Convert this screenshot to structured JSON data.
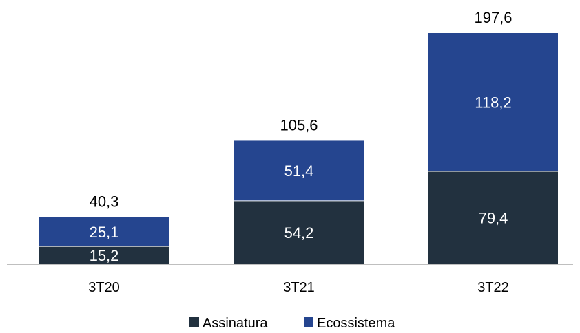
{
  "chart_data": {
    "type": "bar",
    "stacked": true,
    "categories": [
      "3T20",
      "3T21",
      "3T22"
    ],
    "series": [
      {
        "name": "Assinatura",
        "values": [
          15.2,
          54.2,
          79.4
        ],
        "value_labels": [
          "15,2",
          "54,2",
          "79,4"
        ],
        "color": "#22313f"
      },
      {
        "name": "Ecossistema",
        "values": [
          25.1,
          51.4,
          118.2
        ],
        "value_labels": [
          "25,1",
          "51,4",
          "118,2"
        ],
        "color": "#25458f"
      }
    ],
    "totals": [
      40.3,
      105.6,
      197.6
    ],
    "total_labels": [
      "40,3",
      "105,6",
      "197,6"
    ],
    "title": "",
    "xlabel": "",
    "ylabel": "",
    "ylim": [
      0,
      197.6
    ],
    "grid": false,
    "legend_position": "bottom",
    "axis_color": "#bfbfbf"
  }
}
